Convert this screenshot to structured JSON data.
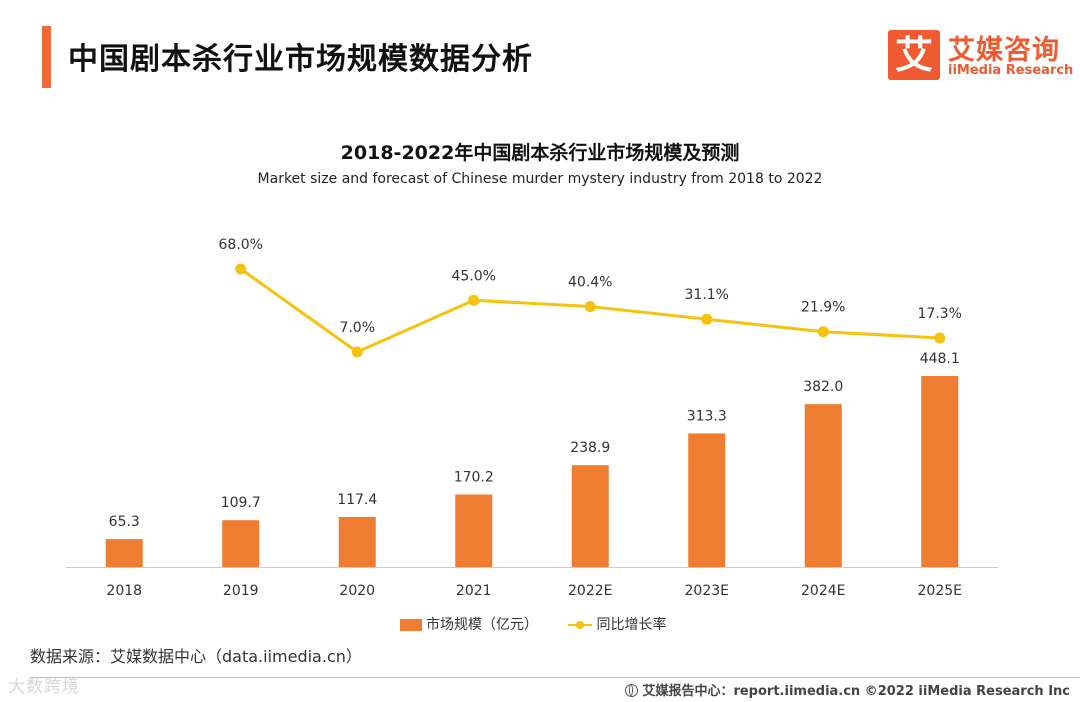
{
  "page": {
    "title": "中国剧本杀行业市场规模数据分析"
  },
  "logo": {
    "mark": "艾",
    "cn": "艾媒咨询",
    "en": "iiMedia Research"
  },
  "colors": {
    "accent": "#ef6a38",
    "bar": "#ee7d31",
    "line": "#f5c20d"
  },
  "chart_data": {
    "type": "bar",
    "title": "2018-2022年中国剧本杀行业市场规模及预测",
    "subtitle": "Market size and forecast of Chinese murder mystery industry from 2018 to 2022",
    "categories": [
      "2018",
      "2019",
      "2020",
      "2021",
      "2022E",
      "2023E",
      "2024E",
      "2025E"
    ],
    "series": [
      {
        "name": "市场规模（亿元）",
        "type": "bar",
        "values": [
          65.3,
          109.7,
          117.4,
          170.2,
          238.9,
          313.3,
          382.0,
          448.1
        ],
        "labels": [
          "65.3",
          "109.7",
          "117.4",
          "170.2",
          "238.9",
          "313.3",
          "382.0",
          "448.1"
        ]
      },
      {
        "name": "同比增长率",
        "type": "line",
        "values": [
          null,
          68.0,
          7.0,
          45.0,
          40.4,
          31.1,
          21.9,
          17.3
        ],
        "labels": [
          "",
          "68.0%",
          "7.0%",
          "45.0%",
          "40.4%",
          "31.1%",
          "21.9%",
          "17.3%"
        ]
      }
    ],
    "legend_position": "bottom-center",
    "grid": false
  },
  "source": "数据来源：艾媒数据中心（data.iimedia.cn）",
  "watermark": "大数跨境",
  "footer": "艾媒报告中心：report.iimedia.cn  ©2022  iiMedia Research  Inc"
}
